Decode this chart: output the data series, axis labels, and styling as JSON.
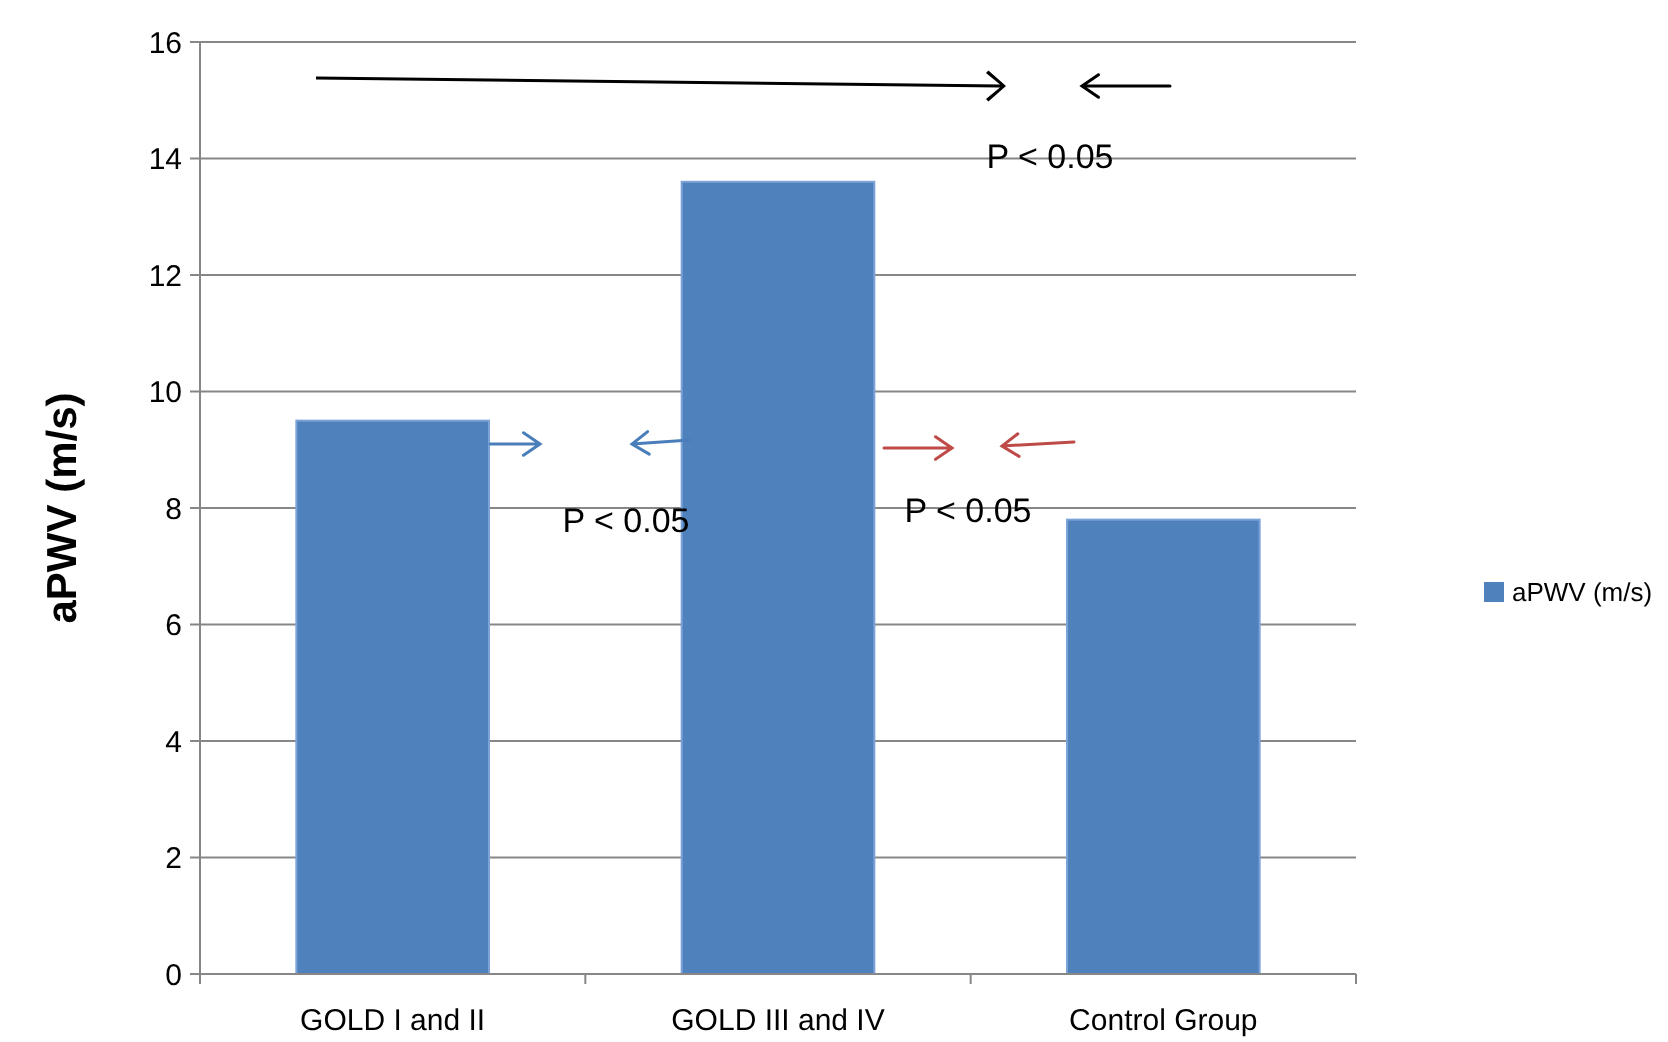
{
  "chart_data": {
    "type": "bar",
    "ylabel": "aPWV (m/s)",
    "categories": [
      "GOLD I and II",
      "GOLD III and IV",
      "Control Group"
    ],
    "series": [
      {
        "name": "aPWV (m/s)",
        "color": "#4f81bd",
        "values": [
          9.5,
          13.6,
          7.8
        ]
      }
    ],
    "ylim": [
      0,
      16
    ],
    "yticks": [
      0,
      2,
      4,
      6,
      8,
      10,
      12,
      14,
      16
    ],
    "grid": "y",
    "legend": "right",
    "annotations": [
      "P < 0.05",
      "P < 0.05",
      "P < 0.05"
    ]
  }
}
